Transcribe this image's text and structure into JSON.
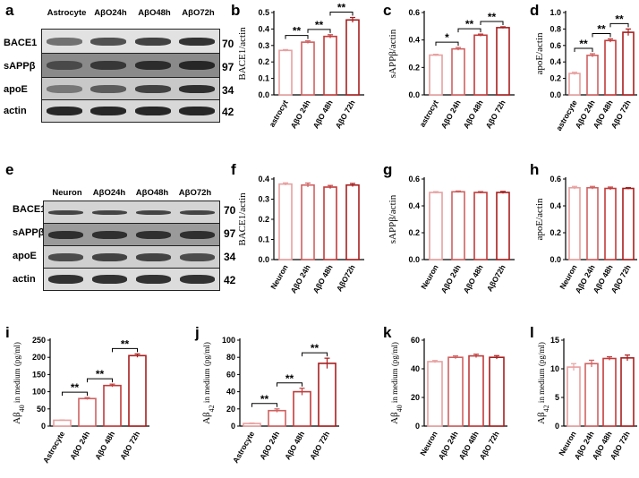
{
  "panels": {
    "a": "a",
    "b": "b",
    "c": "c",
    "d": "d",
    "e": "e",
    "f": "f",
    "g": "g",
    "h": "h",
    "i": "i",
    "j": "j",
    "k": "k",
    "l": "l"
  },
  "blot_a": {
    "lanes": [
      "Astrocyte",
      "AβO24h",
      "AβO48h",
      "AβO72h"
    ],
    "rows": [
      {
        "label": "BACE1",
        "kda": "70"
      },
      {
        "label": "sAPPβ",
        "kda": "97"
      },
      {
        "label": "apoE",
        "kda": "34"
      },
      {
        "label": "actin",
        "kda": "42"
      }
    ]
  },
  "blot_e": {
    "lanes": [
      "Neuron",
      "AβO24h",
      "AβO48h",
      "AβO72h"
    ],
    "rows": [
      {
        "label": "BACE1",
        "kda": "70"
      },
      {
        "label": "sAPPβ",
        "kda": "97"
      },
      {
        "label": "apoE",
        "kda": "34"
      },
      {
        "label": "actin",
        "kda": "42"
      }
    ]
  },
  "colors": {
    "bar_light": "#e8a0a0",
    "bar_mid": "#d06060",
    "bar_dark": "#c23b3b",
    "bar_darkest": "#a81e1e"
  },
  "chart_data": [
    {
      "id": "b",
      "type": "bar",
      "categories": [
        "astrocyt",
        "AβO 24h",
        "AβO 48h",
        "AβO 72h"
      ],
      "values": [
        0.27,
        0.32,
        0.355,
        0.455
      ],
      "errors": [
        0.005,
        0.008,
        0.01,
        0.015
      ],
      "ylabel": "BACE1/actin",
      "ylim": [
        0.0,
        0.5
      ],
      "yticks": [
        "0.0",
        "0.1",
        "0.2",
        "0.3",
        "0.4",
        "0.5"
      ],
      "ytick_vals": [
        0,
        0.1,
        0.2,
        0.3,
        0.4,
        0.5
      ],
      "sig": [
        {
          "from": 0,
          "to": 1,
          "label": "**"
        },
        {
          "from": 1,
          "to": 2,
          "label": "**"
        },
        {
          "from": 2,
          "to": 3,
          "label": "**"
        }
      ]
    },
    {
      "id": "c",
      "type": "bar",
      "categories": [
        "astrocyt",
        "AβO 24h",
        "AβO 48h",
        "AβO 72h"
      ],
      "values": [
        0.29,
        0.335,
        0.435,
        0.49
      ],
      "errors": [
        0.006,
        0.01,
        0.008,
        0.006
      ],
      "ylabel": "sAPPβ/actin",
      "ylim": [
        0.0,
        0.6
      ],
      "yticks": [
        "0.0",
        "0.2",
        "0.4",
        "0.6"
      ],
      "ytick_vals": [
        0,
        0.2,
        0.4,
        0.6
      ],
      "sig": [
        {
          "from": 0,
          "to": 1,
          "label": "*"
        },
        {
          "from": 1,
          "to": 2,
          "label": "**"
        },
        {
          "from": 2,
          "to": 3,
          "label": "**"
        }
      ]
    },
    {
      "id": "d",
      "type": "bar",
      "categories": [
        "astrocyte",
        "AβO 24h",
        "AβO 48h",
        "AβO 72h"
      ],
      "values": [
        0.26,
        0.48,
        0.66,
        0.76
      ],
      "errors": [
        0.015,
        0.02,
        0.02,
        0.04
      ],
      "ylabel": "apoE/actin",
      "ylim": [
        0.0,
        1.0
      ],
      "yticks": [
        "0.0",
        "0.2",
        "0.4",
        "0.6",
        "0.8",
        "1.0"
      ],
      "ytick_vals": [
        0,
        0.2,
        0.4,
        0.6,
        0.8,
        1.0
      ],
      "sig": [
        {
          "from": 0,
          "to": 1,
          "label": "**"
        },
        {
          "from": 1,
          "to": 2,
          "label": "**"
        },
        {
          "from": 2,
          "to": 3,
          "label": "**"
        }
      ]
    },
    {
      "id": "f",
      "type": "bar",
      "categories": [
        "Neuron",
        "AβO 24h",
        "AβO 48h",
        "AβO72h"
      ],
      "values": [
        0.375,
        0.37,
        0.36,
        0.37
      ],
      "errors": [
        0.006,
        0.01,
        0.008,
        0.008
      ],
      "ylabel": "BACE1/actin",
      "ylim": [
        0.0,
        0.4
      ],
      "yticks": [
        "0.0",
        "0.1",
        "0.2",
        "0.3",
        "0.4"
      ],
      "ytick_vals": [
        0,
        0.1,
        0.2,
        0.3,
        0.4
      ],
      "sig": []
    },
    {
      "id": "g",
      "type": "bar",
      "categories": [
        "Neuron",
        "AβO 24h",
        "AβO 48h",
        "AβO72h"
      ],
      "values": [
        0.5,
        0.505,
        0.5,
        0.5
      ],
      "errors": [
        0.006,
        0.006,
        0.006,
        0.008
      ],
      "ylabel": "sAPPβ/actin",
      "ylim": [
        0.0,
        0.6
      ],
      "yticks": [
        "0.0",
        "0.2",
        "0.4",
        "0.6"
      ],
      "ytick_vals": [
        0,
        0.2,
        0.4,
        0.6
      ],
      "sig": []
    },
    {
      "id": "h",
      "type": "bar",
      "categories": [
        "Neuron",
        "AβO 24h",
        "AβO 48h",
        "AβO 72h"
      ],
      "values": [
        0.535,
        0.535,
        0.53,
        0.53
      ],
      "errors": [
        0.01,
        0.01,
        0.01,
        0.006
      ],
      "ylabel": "apoE/actin",
      "ylim": [
        0.0,
        0.6
      ],
      "yticks": [
        "0.0",
        "0.2",
        "0.4",
        "0.6"
      ],
      "ytick_vals": [
        0,
        0.2,
        0.4,
        0.6
      ],
      "sig": []
    },
    {
      "id": "i",
      "type": "bar",
      "categories": [
        "Astrocyte",
        "AβO 24h",
        "AβO 48h",
        "AβO 72h"
      ],
      "values": [
        17,
        80,
        118,
        205
      ],
      "errors": [
        1,
        3,
        4,
        5
      ],
      "ylabel_main": "Aβ",
      "ylabel_sub": "40",
      "ylabel_rest": " in medium (pg/ml)",
      "ylim": [
        0,
        250
      ],
      "yticks": [
        "0",
        "50",
        "100",
        "150",
        "200",
        "250"
      ],
      "ytick_vals": [
        0,
        50,
        100,
        150,
        200,
        250
      ],
      "sig": [
        {
          "from": 0,
          "to": 1,
          "label": "**"
        },
        {
          "from": 1,
          "to": 2,
          "label": "**"
        },
        {
          "from": 2,
          "to": 3,
          "label": "**"
        }
      ]
    },
    {
      "id": "j",
      "type": "bar",
      "categories": [
        "Astrocyte",
        "AβO 24h",
        "AβO 48h",
        "AβO 72h"
      ],
      "values": [
        3,
        18,
        40,
        73
      ],
      "errors": [
        0.5,
        2,
        4,
        6
      ],
      "ylabel_main": "Aβ",
      "ylabel_sub": "42",
      "ylabel_rest": " in medium (pg/ml)",
      "ylim": [
        0,
        100
      ],
      "yticks": [
        "0",
        "20",
        "40",
        "60",
        "80",
        "100"
      ],
      "ytick_vals": [
        0,
        20,
        40,
        60,
        80,
        100
      ],
      "sig": [
        {
          "from": 0,
          "to": 1,
          "label": "**"
        },
        {
          "from": 1,
          "to": 2,
          "label": "**"
        },
        {
          "from": 2,
          "to": 3,
          "label": "**"
        }
      ]
    },
    {
      "id": "k",
      "type": "bar",
      "categories": [
        "Neuron",
        "AβO 24h",
        "AβO 48h",
        "AβO 72h"
      ],
      "values": [
        45,
        48,
        49,
        48
      ],
      "errors": [
        0.8,
        1,
        1.2,
        1.2
      ],
      "ylabel_main": "Aβ",
      "ylabel_sub": "40",
      "ylabel_rest": " in medium (pg/ml)",
      "ylim": [
        0,
        60
      ],
      "yticks": [
        "0",
        "20",
        "40",
        "60"
      ],
      "ytick_vals": [
        0,
        20,
        40,
        60
      ],
      "sig": []
    },
    {
      "id": "l",
      "type": "bar",
      "categories": [
        "Neuron",
        "AβO 24h",
        "AβO 48h",
        "AβO 72h"
      ],
      "values": [
        10.3,
        10.9,
        11.8,
        11.9
      ],
      "errors": [
        0.6,
        0.6,
        0.3,
        0.5
      ],
      "ylabel_main": "Aβ",
      "ylabel_sub": "42",
      "ylabel_rest": " in medium (pg/ml)",
      "ylim": [
        0,
        15
      ],
      "yticks": [
        "0",
        "5",
        "10",
        "15"
      ],
      "ytick_vals": [
        0,
        5,
        10,
        15
      ],
      "sig": []
    }
  ]
}
